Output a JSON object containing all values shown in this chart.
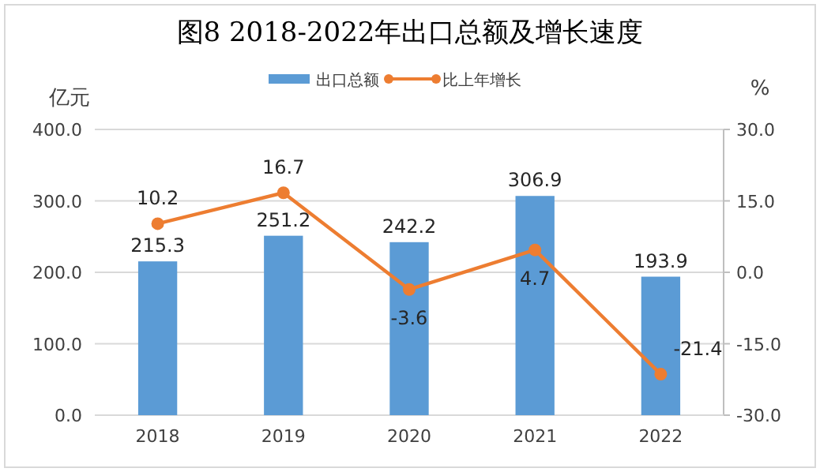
{
  "chart_data": {
    "type": "bar",
    "title": "图8 2018-2022年出口总额及增长速度",
    "ylabel": "亿元",
    "y2label": "%",
    "categories": [
      "2018",
      "2019",
      "2020",
      "2021",
      "2022"
    ],
    "series": [
      {
        "name": "出口总额",
        "color": "#5b9bd5",
        "values": [
          215.3,
          251.2,
          242.2,
          306.9,
          193.9
        ]
      },
      {
        "name": "比上年增长",
        "type": "line",
        "axis": "y2",
        "color": "#ed7d31",
        "marker": "circle",
        "values": [
          10.2,
          16.7,
          -3.6,
          4.7,
          -21.4
        ]
      }
    ],
    "ylim": [
      0,
      400
    ],
    "yticks": [
      {
        "value": 0,
        "label": "0.0"
      },
      {
        "value": 100,
        "label": "100.0"
      },
      {
        "value": 200,
        "label": "200.0"
      },
      {
        "value": 300,
        "label": "300.0"
      },
      {
        "value": 400,
        "label": "400.0"
      }
    ],
    "y2lim": [
      -30,
      30
    ],
    "y2ticks": [
      {
        "value": -30,
        "label": "-30.0"
      },
      {
        "value": -15,
        "label": "-15.0"
      },
      {
        "value": 0,
        "label": "0.0"
      },
      {
        "value": 15,
        "label": "15.0"
      },
      {
        "value": 30,
        "label": "30.0"
      }
    ],
    "grid": "y",
    "legend": "top",
    "data_labels": true
  }
}
